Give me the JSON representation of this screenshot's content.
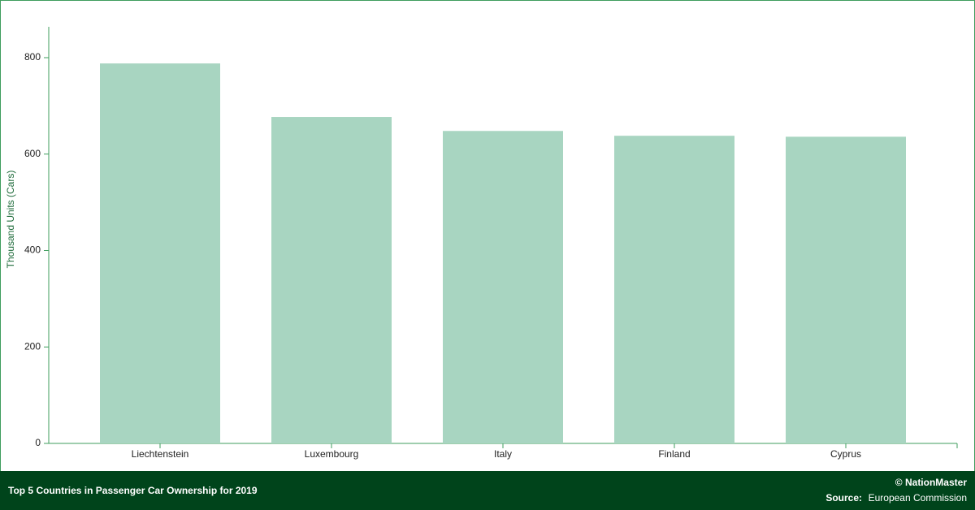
{
  "chart_data": {
    "type": "bar",
    "title": "Top 5 Countries in Passenger Car Ownership for 2019",
    "y_label": "Thousand Units (Cars)",
    "categories": [
      "Liechtenstein",
      "Luxembourg",
      "Italy",
      "Finland",
      "Cyprus"
    ],
    "values": [
      788,
      677,
      648,
      638,
      636
    ],
    "color": "#a8d5c1",
    "ylim": [
      0,
      864
    ],
    "yticks": [
      0,
      200,
      400,
      600,
      800
    ]
  },
  "footer": {
    "copyright": "© NationMaster",
    "source_label": "Source:",
    "source": "European Commission"
  }
}
